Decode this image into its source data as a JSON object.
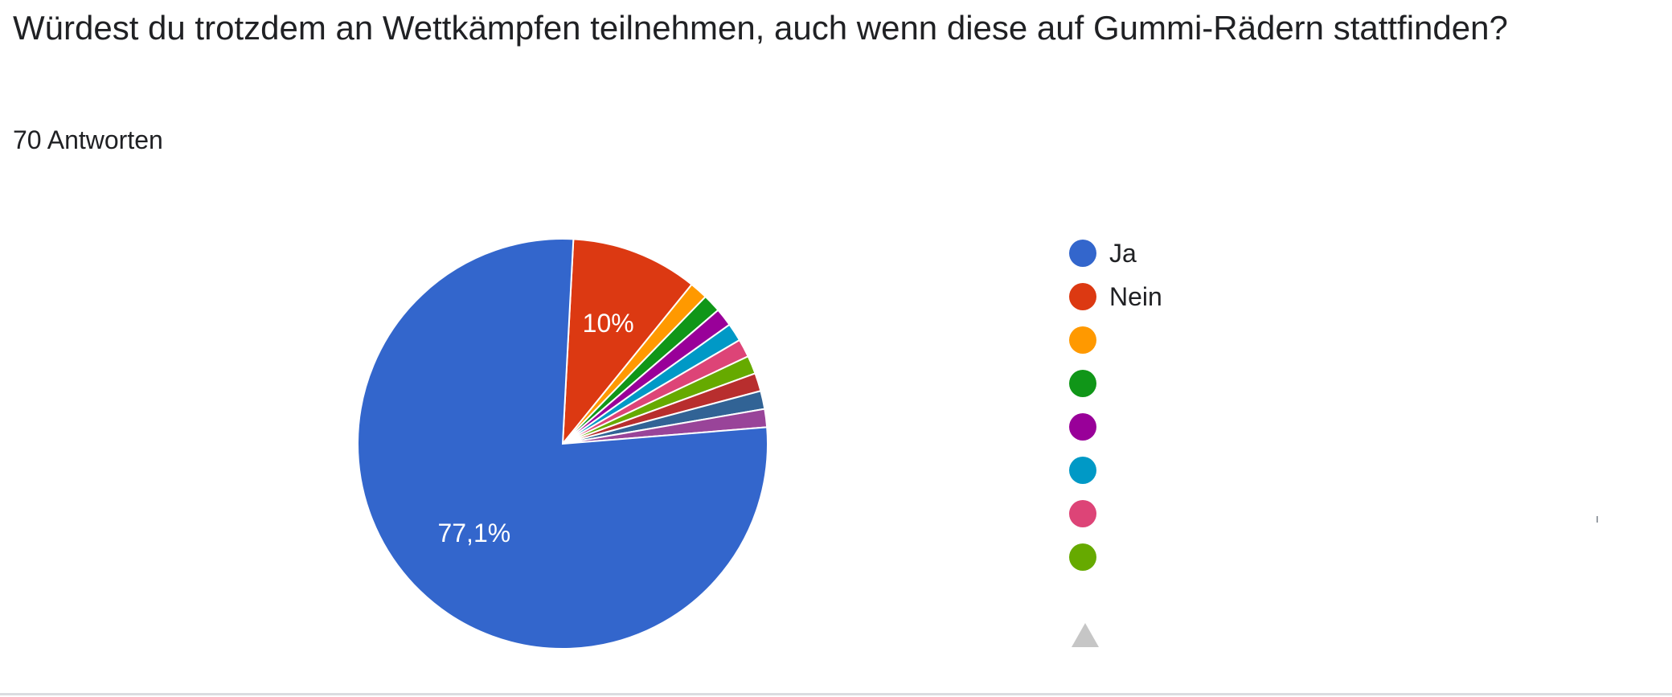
{
  "question": {
    "title": "Würdest du trotzdem an Wettkämpfen teilnehmen, auch wenn diese auf Gummi-Rädern stattfinden?",
    "response_count": "70 Antworten"
  },
  "chart_data": {
    "type": "pie",
    "title": "Würdest du trotzdem an Wettkämpfen teilnehmen, auch wenn diese auf Gummi-Rädern stattfinden?",
    "slices": [
      {
        "label": "Ja",
        "value": 77.1,
        "display": "77,1%",
        "color": "#3366cc"
      },
      {
        "label": "Nein",
        "value": 10.0,
        "display": "10%",
        "color": "#dc3912"
      },
      {
        "label": "",
        "value": 1.43,
        "display": "",
        "color": "#ff9900"
      },
      {
        "label": "",
        "value": 1.43,
        "display": "",
        "color": "#109618"
      },
      {
        "label": "",
        "value": 1.43,
        "display": "",
        "color": "#990099"
      },
      {
        "label": "",
        "value": 1.43,
        "display": "",
        "color": "#0099c6"
      },
      {
        "label": "",
        "value": 1.43,
        "display": "",
        "color": "#dd4477"
      },
      {
        "label": "",
        "value": 1.43,
        "display": "",
        "color": "#66aa00"
      },
      {
        "label": "",
        "value": 1.43,
        "display": "",
        "color": "#b82e2e"
      },
      {
        "label": "",
        "value": 1.43,
        "display": "",
        "color": "#316395"
      },
      {
        "label": "",
        "value": 1.43,
        "display": "",
        "color": "#994499"
      }
    ],
    "legend_placement": "right",
    "legend_more_indicator": "up-arrow",
    "visible_legend_entries": 8
  }
}
